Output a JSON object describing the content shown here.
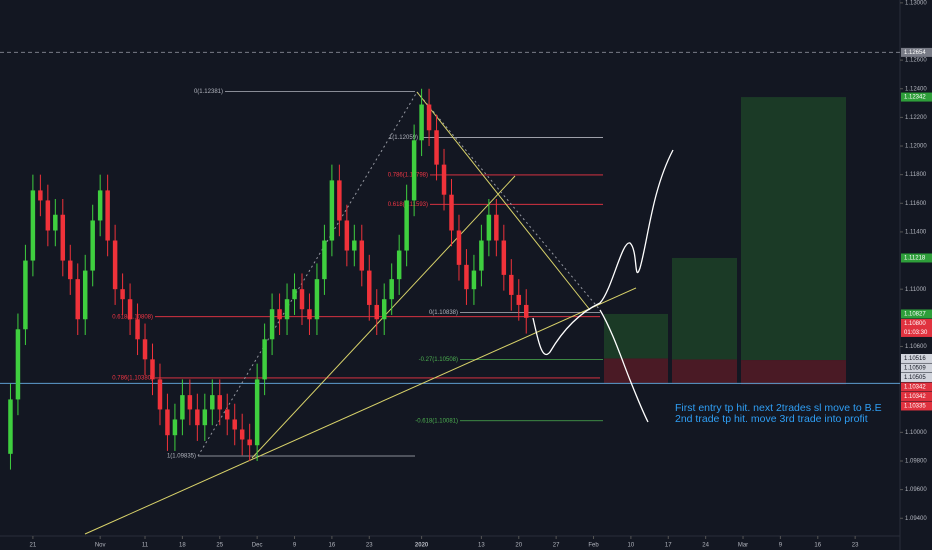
{
  "chart_data": {
    "type": "candlestick",
    "x": [
      -3,
      -2,
      -1,
      0,
      1,
      2,
      3,
      4,
      5,
      6,
      7,
      8,
      9,
      10,
      11,
      12,
      13,
      14,
      15,
      16,
      17,
      18,
      19,
      20,
      21,
      22,
      23,
      24,
      25,
      26,
      27,
      28,
      29,
      30,
      31,
      32,
      33,
      34,
      35,
      36,
      37,
      38,
      39,
      40,
      41,
      42,
      43,
      44,
      45,
      46,
      47,
      48,
      49,
      50,
      51,
      52,
      53,
      54,
      55,
      56,
      57,
      58,
      59,
      60,
      61,
      62,
      63,
      64,
      65,
      66
    ],
    "open": [
      1.0985,
      1.1023,
      1.1072,
      1.112,
      1.1169,
      1.1162,
      1.1141,
      1.1152,
      1.112,
      1.1107,
      1.1079,
      1.1113,
      1.1148,
      1.1169,
      1.1134,
      1.11,
      1.1093,
      1.1079,
      1.1065,
      1.1051,
      1.1037,
      1.1016,
      1.0998,
      1.1009,
      1.1026,
      1.1016,
      1.1005,
      1.1016,
      1.1026,
      1.1016,
      1.1009,
      1.1002,
      1.0995,
      1.0991,
      1.1037,
      1.1065,
      1.1086,
      1.1079,
      1.1093,
      1.11,
      1.1086,
      1.1079,
      1.1107,
      1.1134,
      1.1176,
      1.1148,
      1.1127,
      1.1134,
      1.1113,
      1.1089,
      1.1079,
      1.1093,
      1.1107,
      1.1127,
      1.1162,
      1.1204,
      1.1229,
      1.1211,
      1.1187,
      1.1166,
      1.1141,
      1.1117,
      1.11,
      1.1113,
      1.1134,
      1.1152,
      1.1134,
      1.111,
      1.1096,
      1.1089
    ],
    "high": [
      1.1034,
      1.1083,
      1.1131,
      1.118,
      1.118,
      1.1173,
      1.1163,
      1.1163,
      1.1131,
      1.1118,
      1.1124,
      1.1159,
      1.118,
      1.118,
      1.1145,
      1.1111,
      1.1104,
      1.109,
      1.1076,
      1.1062,
      1.1048,
      1.1027,
      1.102,
      1.1037,
      1.1037,
      1.1027,
      1.1027,
      1.1037,
      1.1037,
      1.1027,
      1.102,
      1.1013,
      1.1006,
      1.1048,
      1.1076,
      1.1097,
      1.1097,
      1.1104,
      1.1111,
      1.1111,
      1.1097,
      1.1118,
      1.1145,
      1.1187,
      1.1187,
      1.1159,
      1.1145,
      1.1145,
      1.1124,
      1.11,
      1.1104,
      1.1118,
      1.1138,
      1.1173,
      1.1215,
      1.124,
      1.124,
      1.1222,
      1.1198,
      1.1177,
      1.1152,
      1.1128,
      1.1124,
      1.1145,
      1.1163,
      1.1163,
      1.1145,
      1.1121,
      1.1107,
      1.11
    ],
    "low": [
      1.0974,
      1.1012,
      1.1061,
      1.1109,
      1.1151,
      1.113,
      1.113,
      1.1109,
      1.1096,
      1.1068,
      1.1068,
      1.1102,
      1.1137,
      1.1123,
      1.1089,
      1.1082,
      1.1068,
      1.1054,
      1.104,
      1.1026,
      1.1005,
      1.0987,
      1.0987,
      1.0998,
      1.1005,
      1.0994,
      1.0994,
      1.1005,
      1.1005,
      1.0998,
      1.0991,
      1.0984,
      1.098,
      1.098,
      1.1026,
      1.1054,
      1.1068,
      1.1068,
      1.1082,
      1.1075,
      1.1068,
      1.1068,
      1.1096,
      1.1123,
      1.1137,
      1.1116,
      1.1116,
      1.1102,
      1.1078,
      1.1068,
      1.1068,
      1.1082,
      1.1096,
      1.1116,
      1.1151,
      1.1193,
      1.12,
      1.1176,
      1.1155,
      1.113,
      1.1106,
      1.1089,
      1.1089,
      1.1102,
      1.1123,
      1.1123,
      1.1099,
      1.1085,
      1.1078,
      1.1069
    ],
    "close": [
      1.1023,
      1.1072,
      1.112,
      1.1169,
      1.1162,
      1.1141,
      1.1152,
      1.112,
      1.1107,
      1.1079,
      1.1113,
      1.1148,
      1.1169,
      1.1134,
      1.11,
      1.1093,
      1.1079,
      1.1065,
      1.1051,
      1.1037,
      1.1016,
      1.0998,
      1.1009,
      1.1026,
      1.1016,
      1.1005,
      1.1016,
      1.1026,
      1.1016,
      1.1009,
      1.1002,
      1.0995,
      1.0991,
      1.1037,
      1.1065,
      1.1086,
      1.1079,
      1.1093,
      1.11,
      1.1086,
      1.1079,
      1.1107,
      1.1134,
      1.1176,
      1.1148,
      1.1127,
      1.1134,
      1.1113,
      1.1089,
      1.1079,
      1.1093,
      1.1107,
      1.1127,
      1.1162,
      1.1204,
      1.1229,
      1.1211,
      1.1187,
      1.1166,
      1.1141,
      1.1117,
      1.11,
      1.1113,
      1.1134,
      1.1152,
      1.1134,
      1.111,
      1.1096,
      1.1089,
      1.108
    ],
    "up_color": "#3fcf3f",
    "down_color": "#f0323a",
    "xlim": [
      -4.4,
      116
    ],
    "xticks": [
      {
        "value": 0,
        "label": "21"
      },
      {
        "value": 9,
        "label": "Nov"
      },
      {
        "value": 15,
        "label": "11"
      },
      {
        "value": 20,
        "label": "18"
      },
      {
        "value": 25,
        "label": "25"
      },
      {
        "value": 30,
        "label": "Dec"
      },
      {
        "value": 35,
        "label": "9"
      },
      {
        "value": 40,
        "label": "16"
      },
      {
        "value": 45,
        "label": "23"
      },
      {
        "value": 52,
        "label": "2020"
      },
      {
        "value": 60,
        "label": "13"
      },
      {
        "value": 65,
        "label": "20"
      },
      {
        "value": 70,
        "label": "27"
      },
      {
        "value": 75,
        "label": "Feb"
      },
      {
        "value": 80,
        "label": "10"
      },
      {
        "value": 85,
        "label": "17"
      },
      {
        "value": 90,
        "label": "24"
      },
      {
        "value": 95,
        "label": "Mar"
      },
      {
        "value": 100,
        "label": "9"
      },
      {
        "value": 105,
        "label": "16"
      },
      {
        "value": 110,
        "label": "23"
      }
    ],
    "ylim": [
      1.0929,
      1.1302
    ],
    "yticks": [
      {
        "value": 1.13,
        "label": "1.13000"
      },
      {
        "value": 1.126,
        "label": "1.12600"
      },
      {
        "value": 1.124,
        "label": "1.12400"
      },
      {
        "value": 1.122,
        "label": "1.12200"
      },
      {
        "value": 1.12,
        "label": "1.12000"
      },
      {
        "value": 1.118,
        "label": "1.11800"
      },
      {
        "value": 1.116,
        "label": "1.11600"
      },
      {
        "value": 1.114,
        "label": "1.11400"
      },
      {
        "value": 1.11,
        "label": "1.11000"
      },
      {
        "value": 1.106,
        "label": "1.10600"
      },
      {
        "value": 1.1,
        "label": "1.10000"
      },
      {
        "value": 1.098,
        "label": "1.09800"
      },
      {
        "value": 1.096,
        "label": "1.09600"
      },
      {
        "value": 1.094,
        "label": "1.09400"
      }
    ],
    "fib_levels": [
      {
        "price": 1.12381,
        "label": "0(1.12381)",
        "color": "#b2b5be"
      },
      {
        "price": 1.10808,
        "label": "0.618(1.10808)",
        "color": "#f23645"
      },
      {
        "price": 1.1038,
        "label": "0.786(1.10380)",
        "color": "#f23645"
      },
      {
        "price": 1.09835,
        "label": "1(1.09835)",
        "color": "#b2b5be"
      },
      {
        "price": 1.12059,
        "label": "1(1.12059)",
        "color": "#b2b5be"
      },
      {
        "price": 1.11798,
        "label": "0.786(1.11798)",
        "color": "#f23645"
      },
      {
        "price": 1.11593,
        "label": "0.618(1.11593)",
        "color": "#f23645"
      },
      {
        "price": 1.10838,
        "label": "0(1.10838)",
        "color": "#b2b5be"
      },
      {
        "price": 1.10508,
        "label": "-0.27(1.10508)",
        "color": "#4caf50"
      },
      {
        "price": 1.10081,
        "label": "-0.618(1.10081)",
        "color": "#4caf50"
      }
    ],
    "positions": [
      {
        "entry": {
          "value": 1.10516,
          "label": "1.10516"
        },
        "target": {
          "value": 1.10827,
          "label": "1.10827"
        },
        "stop": {
          "value": 1.10342,
          "label": "1.10342"
        }
      },
      {
        "entry": {
          "value": 1.10509,
          "label": "1.10509"
        },
        "target": {
          "value": 1.11218,
          "label": "1.11218"
        },
        "stop": {
          "value": 1.10342,
          "label": "1.10342"
        }
      },
      {
        "entry": {
          "value": 1.10505,
          "label": "1.10505"
        },
        "target": {
          "value": 1.12342,
          "label": "1.12342"
        },
        "stop": {
          "value": 1.10335,
          "label": "1.10335"
        }
      }
    ],
    "price_lines": [
      {
        "value": 1.12654,
        "label": "1.12654",
        "color": "#787b86"
      },
      {
        "value": 1.10342,
        "color": "#5d9cce"
      }
    ],
    "last_price": {
      "value": 1.108,
      "label": "1.10800",
      "countdown": "01:03:30"
    },
    "annotation": [
      "First entry tp hit. next 2trades sl move to B.E",
      "2nd trade tp hit. move 3rd trade into profit"
    ]
  }
}
